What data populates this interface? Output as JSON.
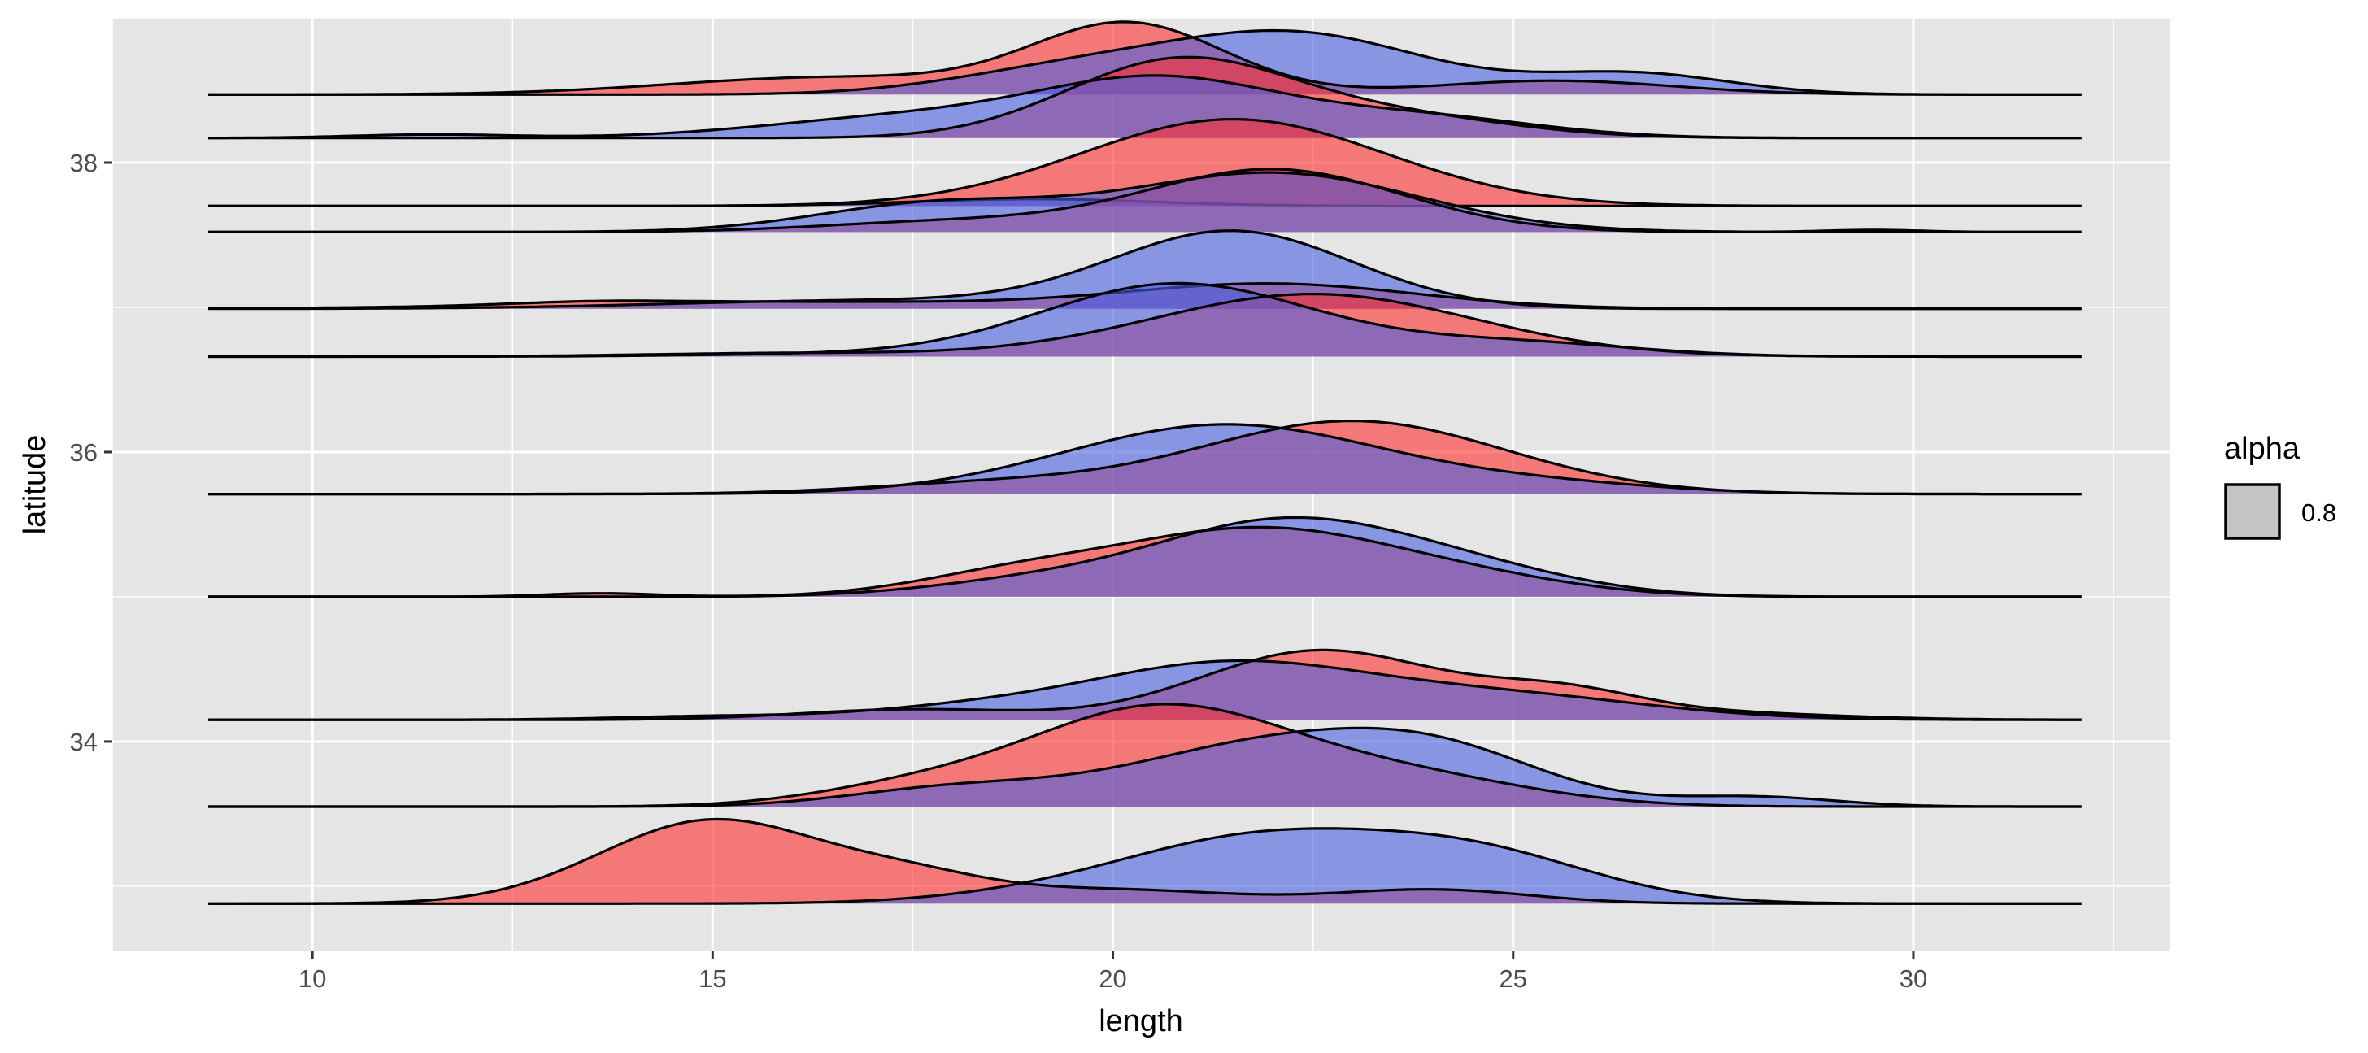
{
  "chart_data": {
    "type": "area",
    "subtype": "ridgeline",
    "xlabel": "length",
    "ylabel": "latitude",
    "xlim": [
      7.5,
      33.2
    ],
    "ylim": [
      32.55,
      39.0
    ],
    "x_ticks": [
      10,
      15,
      20,
      25,
      30
    ],
    "x_tick_labels": [
      "10",
      "15",
      "20",
      "25",
      "30"
    ],
    "y_ticks": [
      34,
      36,
      38
    ],
    "y_tick_labels": [
      "34",
      "36",
      "38"
    ],
    "grid": true,
    "background": "#e5e5e5",
    "grid_color": "#ffffff",
    "colors": {
      "red": "#f8766d",
      "blue": "#6b7fd7",
      "purple": "#8a5aa8",
      "outline": "#000000"
    },
    "fill_colors": [
      "#ff2e2e",
      "#4a5fe0"
    ],
    "fill_alpha": 0.6,
    "x_range": [
      8.7,
      32.1
    ],
    "legend": {
      "title": "alpha",
      "items": [
        "0.8"
      ],
      "placement": "right"
    },
    "ridge_scale": 0.48,
    "ridges": [
      {
        "baseline": 38.47,
        "red": [
          [
            20.2,
            1.2,
            1.0
          ],
          [
            16.5,
            2.0,
            0.25
          ],
          [
            25.5,
            1.5,
            0.2
          ]
        ],
        "blue": [
          [
            22.3,
            1.6,
            0.85
          ],
          [
            19.5,
            1.5,
            0.35
          ],
          [
            26.5,
            1.2,
            0.3
          ]
        ]
      },
      {
        "baseline": 38.17,
        "red": [
          [
            20.8,
            1.4,
            1.1
          ],
          [
            23.5,
            1.5,
            0.3
          ]
        ],
        "blue": [
          [
            20.6,
            1.5,
            0.8
          ],
          [
            17.5,
            1.8,
            0.3
          ],
          [
            11.5,
            1.0,
            0.05
          ],
          [
            23.8,
            1.5,
            0.3
          ]
        ]
      },
      {
        "baseline": 37.7,
        "red": [
          [
            21.5,
            1.9,
            1.25
          ]
        ],
        "blue": [
          [
            19.0,
            1.5,
            0.1
          ]
        ]
      },
      {
        "baseline": 37.52,
        "red": [
          [
            22.0,
            1.6,
            0.9
          ],
          [
            18.0,
            1.6,
            0.15
          ],
          [
            29.5,
            0.6,
            0.03
          ]
        ],
        "blue": [
          [
            22.0,
            1.8,
            0.85
          ],
          [
            17.8,
            1.5,
            0.4
          ]
        ]
      },
      {
        "baseline": 36.99,
        "red": [
          [
            22.0,
            1.8,
            0.35
          ],
          [
            16.0,
            3.0,
            0.1
          ],
          [
            13.5,
            1.0,
            0.04
          ]
        ],
        "blue": [
          [
            21.5,
            1.5,
            1.1
          ],
          [
            17.0,
            2.5,
            0.12
          ]
        ]
      },
      {
        "baseline": 36.66,
        "red": [
          [
            22.5,
            2.0,
            0.9
          ],
          [
            16.0,
            1.8,
            0.05
          ]
        ],
        "blue": [
          [
            20.8,
            1.7,
            1.05
          ],
          [
            25.0,
            1.5,
            0.2
          ],
          [
            16.0,
            1.5,
            0.03
          ]
        ]
      },
      {
        "baseline": 35.71,
        "red": [
          [
            23.0,
            1.9,
            1.05
          ],
          [
            18.5,
            1.6,
            0.15
          ]
        ],
        "blue": [
          [
            21.4,
            2.0,
            1.0
          ],
          [
            25.5,
            1.5,
            0.12
          ]
        ]
      },
      {
        "baseline": 35.0,
        "red": [
          [
            21.8,
            1.7,
            0.95
          ],
          [
            18.8,
            1.3,
            0.3
          ],
          [
            24.5,
            1.4,
            0.2
          ],
          [
            13.6,
            0.7,
            0.05
          ]
        ],
        "blue": [
          [
            22.1,
            1.6,
            1.05
          ],
          [
            19.0,
            1.4,
            0.2
          ],
          [
            24.5,
            1.4,
            0.3
          ]
        ]
      },
      {
        "baseline": 34.15,
        "red": [
          [
            22.6,
            1.5,
            1.0
          ],
          [
            17.5,
            1.4,
            0.15
          ],
          [
            25.6,
            1.0,
            0.35
          ],
          [
            27.5,
            1.5,
            0.1
          ]
        ],
        "blue": [
          [
            21.4,
            1.8,
            0.8
          ],
          [
            18.0,
            1.3,
            0.12
          ],
          [
            25.0,
            1.8,
            0.32
          ],
          [
            15.0,
            1.2,
            0.05
          ]
        ]
      },
      {
        "baseline": 33.55,
        "red": [
          [
            20.5,
            1.6,
            1.35
          ],
          [
            22.5,
            1.5,
            0.2
          ],
          [
            17.5,
            1.3,
            0.25
          ],
          [
            24.0,
            1.5,
            0.3
          ]
        ],
        "blue": [
          [
            22.0,
            1.8,
            0.9
          ],
          [
            24.2,
            1.3,
            0.55
          ],
          [
            18.0,
            1.3,
            0.25
          ],
          [
            28.0,
            1.0,
            0.14
          ]
        ]
      },
      {
        "baseline": 32.88,
        "red": [
          [
            15.0,
            1.4,
            1.2
          ],
          [
            17.5,
            1.0,
            0.3
          ],
          [
            24.0,
            1.2,
            0.2
          ],
          [
            20.0,
            1.5,
            0.2
          ]
        ],
        "blue": [
          [
            21.8,
            1.6,
            0.85
          ],
          [
            24.5,
            1.5,
            0.7
          ],
          [
            19.5,
            1.5,
            0.15
          ]
        ]
      }
    ]
  }
}
